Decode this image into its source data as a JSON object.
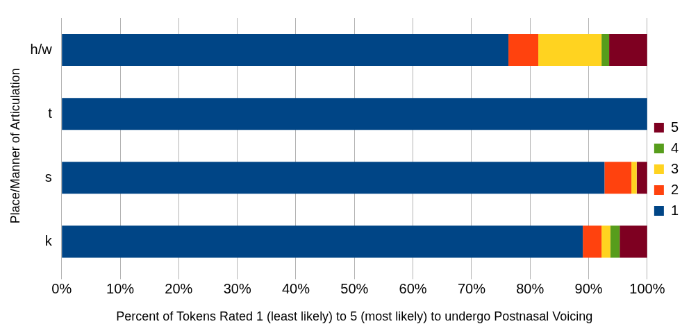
{
  "chart_data": {
    "type": "bar",
    "orientation": "horizontal",
    "stacked": true,
    "xlabel": "Percent of Tokens Rated 1 (least likely) to 5 (most likely) to undergo Postnasal Voicing",
    "ylabel": "Place/Manner of Articulation",
    "categories": [
      "h/w",
      "t",
      "s",
      "k"
    ],
    "series": [
      {
        "name": "1",
        "color": "#004586",
        "values": [
          76.3,
          100,
          92.7,
          89.0
        ]
      },
      {
        "name": "2",
        "color": "#ff420e",
        "values": [
          5.1,
          0,
          4.6,
          3.2
        ]
      },
      {
        "name": "3",
        "color": "#ffd320",
        "values": [
          10.8,
          0,
          0.9,
          1.5
        ]
      },
      {
        "name": "4",
        "color": "#579d1c",
        "values": [
          1.3,
          0,
          0,
          1.6
        ]
      },
      {
        "name": "5",
        "color": "#7e0021",
        "values": [
          6.5,
          0,
          1.8,
          4.7
        ]
      }
    ],
    "xlim": [
      0,
      100
    ],
    "xticks": [
      {
        "value": 0,
        "label": "0%"
      },
      {
        "value": 10,
        "label": "10%"
      },
      {
        "value": 20,
        "label": "20%"
      },
      {
        "value": 30,
        "label": "30%"
      },
      {
        "value": 40,
        "label": "40%"
      },
      {
        "value": 50,
        "label": "50%"
      },
      {
        "value": 60,
        "label": "60%"
      },
      {
        "value": 70,
        "label": "70%"
      },
      {
        "value": 80,
        "label": "80%"
      },
      {
        "value": 90,
        "label": "90%"
      },
      {
        "value": 100,
        "label": "100%"
      }
    ],
    "grid": "x",
    "legend": "right"
  }
}
